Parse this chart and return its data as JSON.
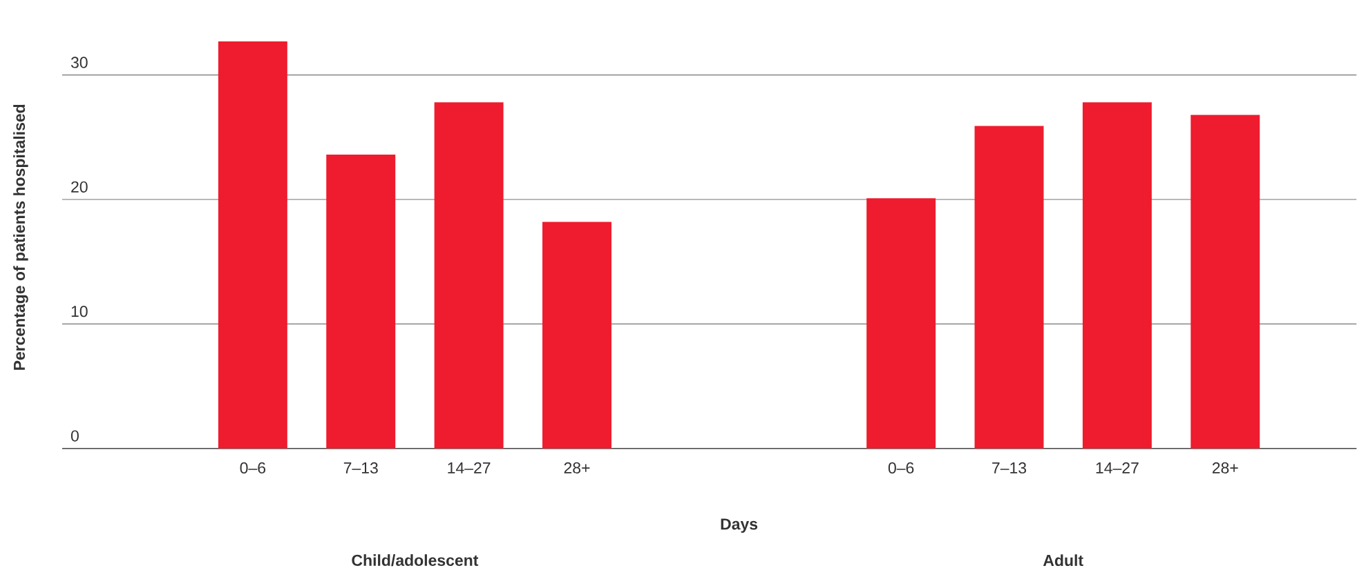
{
  "chart_data": {
    "type": "bar",
    "xlabel": "Days",
    "ylabel": "Percentage of patients hospitalised",
    "categories": [
      "0–6",
      "7–13",
      "14–27",
      "28+",
      null,
      null,
      "0–6",
      "7–13",
      "14–27",
      "28+"
    ],
    "values": [
      32.7,
      23.6,
      27.8,
      18.2,
      null,
      null,
      20.1,
      25.9,
      27.8,
      26.8
    ],
    "color": "#ee1c2e",
    "ylim": [
      0,
      32.7
    ],
    "yticks": [
      0,
      10,
      20,
      30
    ],
    "grid": "y",
    "annotations": [
      "Child/adolescent",
      "Adult"
    ]
  }
}
